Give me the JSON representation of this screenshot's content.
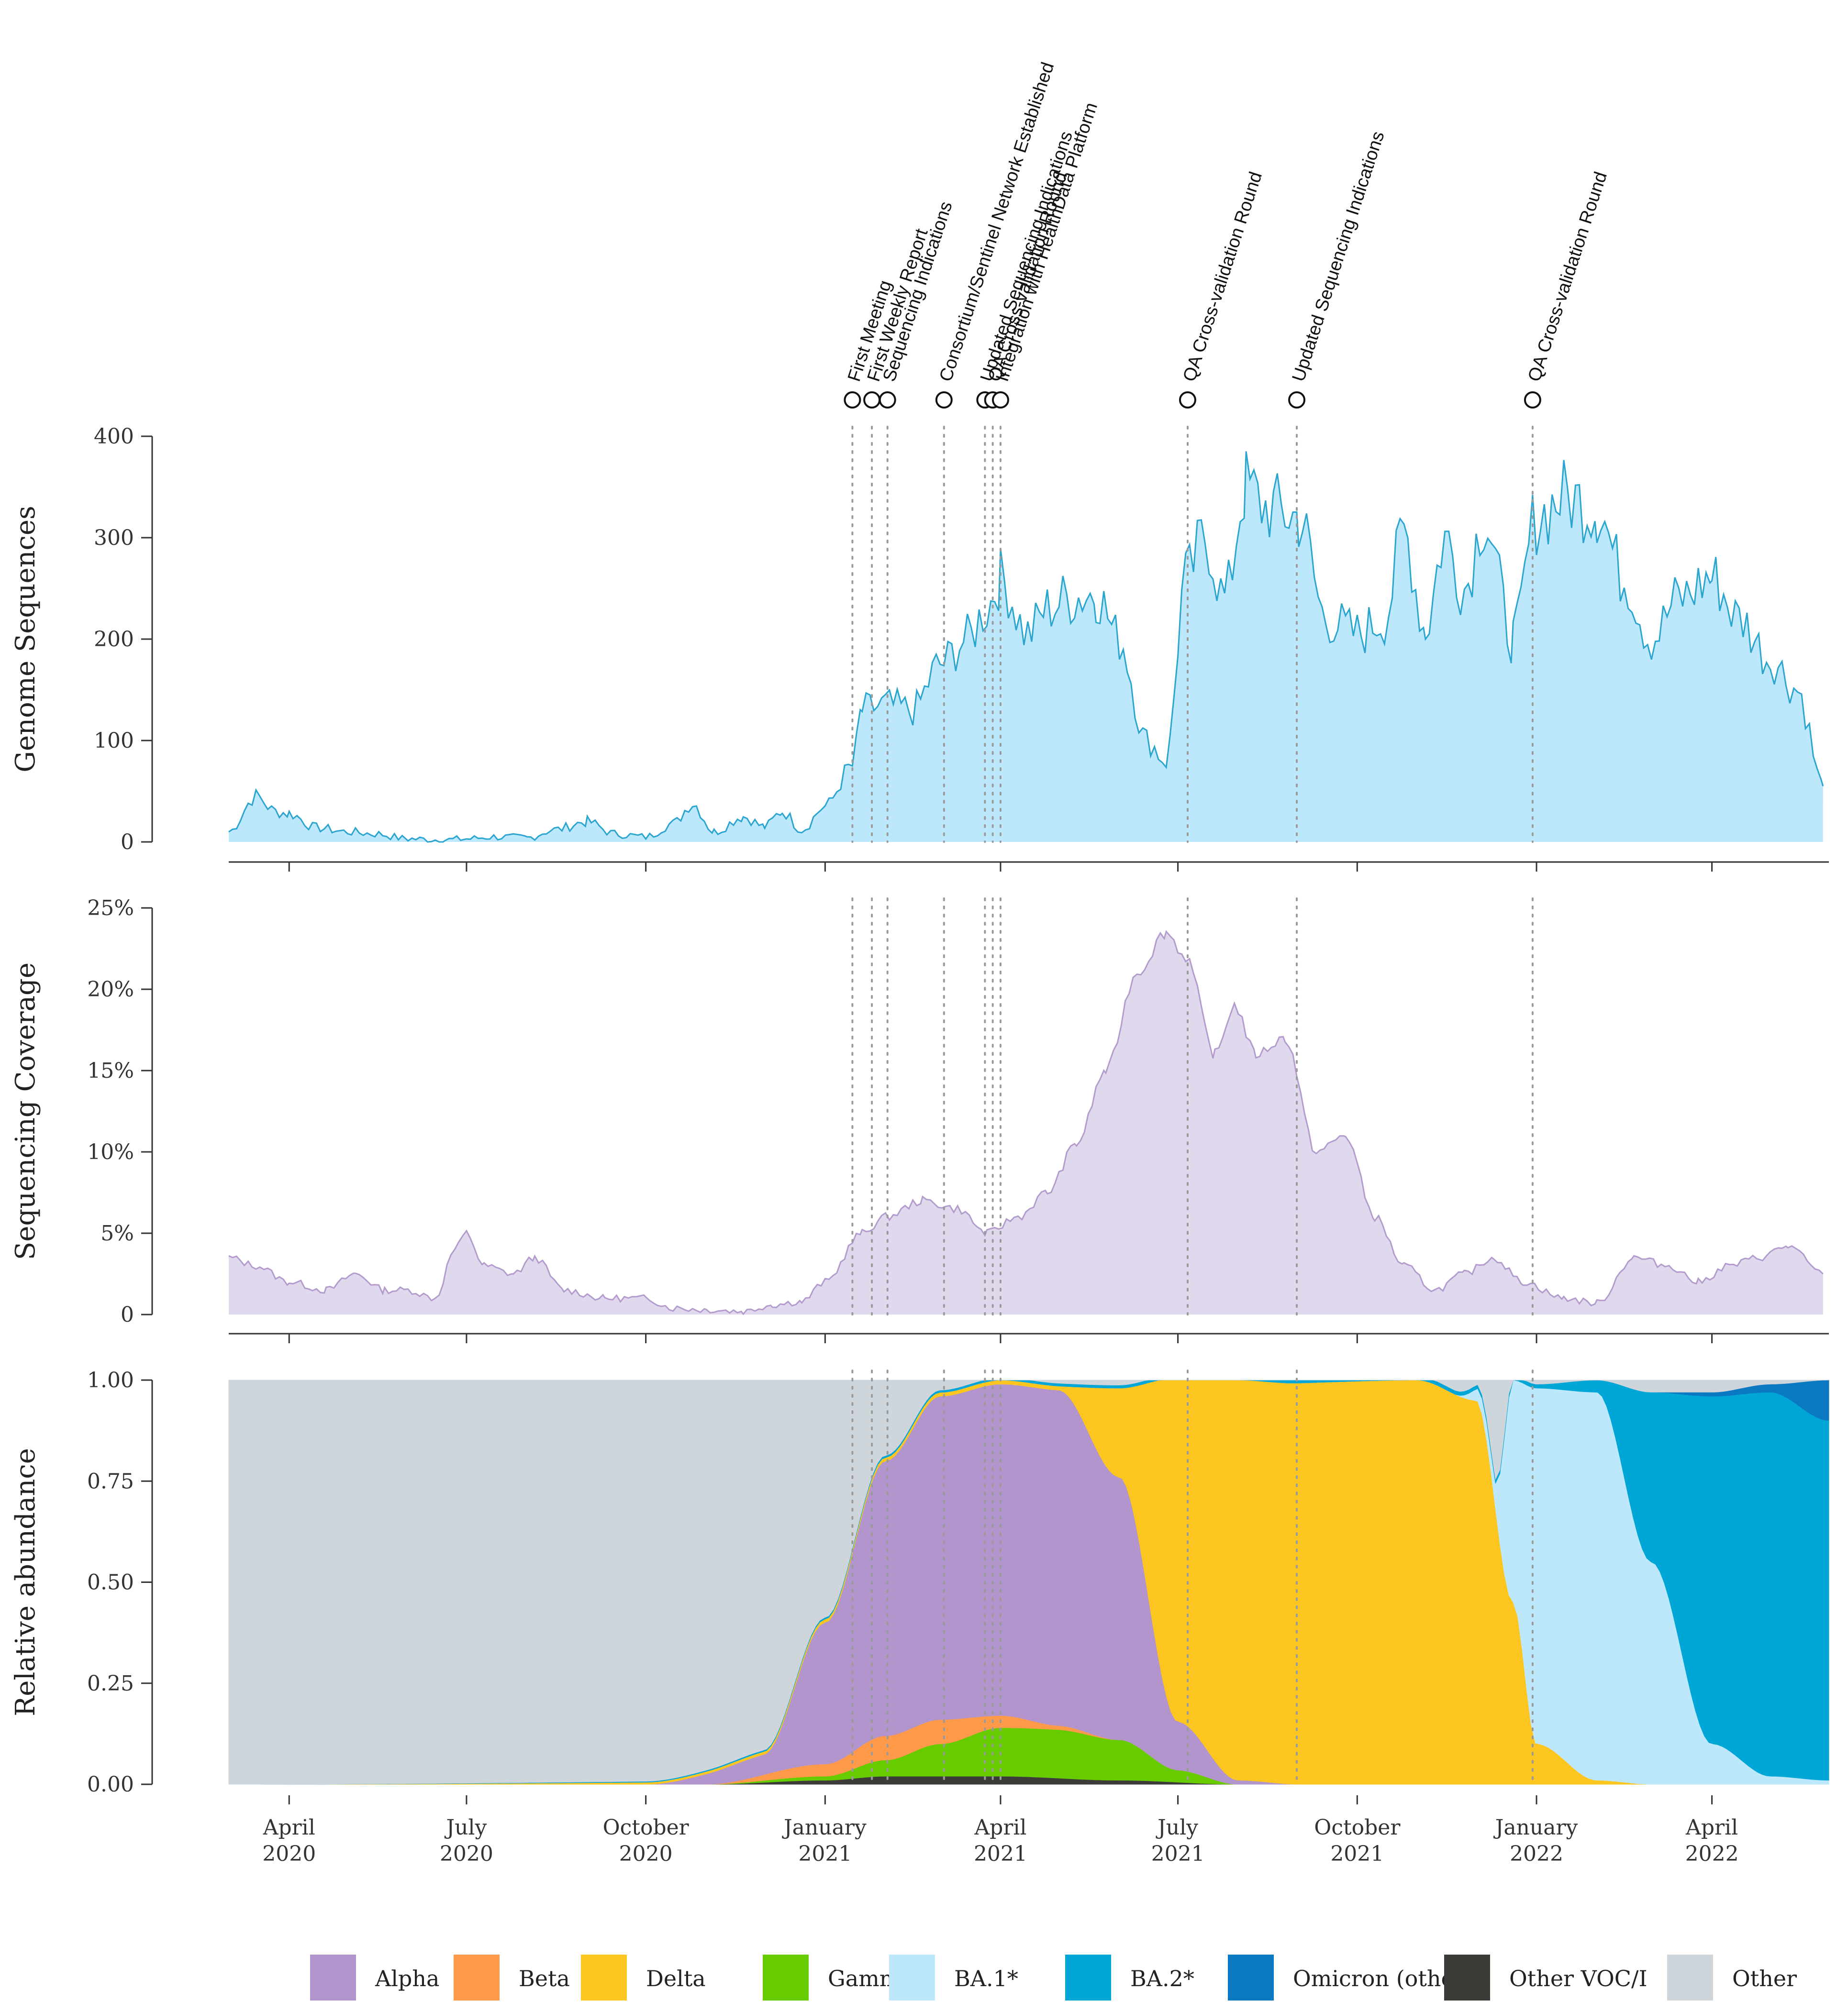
{
  "chart_data": {
    "type": "area",
    "x_axis": {
      "range": [
        "2020-03-01",
        "2022-05-31"
      ],
      "ticks": [
        {
          "date": "2020-04-01",
          "line1": "April",
          "line2": "2020"
        },
        {
          "date": "2020-07-01",
          "line1": "July",
          "line2": "2020"
        },
        {
          "date": "2020-10-01",
          "line1": "October",
          "line2": "2020"
        },
        {
          "date": "2021-01-01",
          "line1": "January",
          "line2": "2021"
        },
        {
          "date": "2021-04-01",
          "line1": "April",
          "line2": "2021"
        },
        {
          "date": "2021-07-01",
          "line1": "July",
          "line2": "2021"
        },
        {
          "date": "2021-10-01",
          "line1": "October",
          "line2": "2021"
        },
        {
          "date": "2022-01-01",
          "line1": "January",
          "line2": "2022"
        },
        {
          "date": "2022-04-01",
          "line1": "April",
          "line2": "2022"
        }
      ]
    },
    "events": [
      {
        "date": "2021-01-15",
        "label": "First Meeting"
      },
      {
        "date": "2021-01-25",
        "label": "First Weekly Report"
      },
      {
        "date": "2021-02-02",
        "label": "Sequencing Indications"
      },
      {
        "date": "2021-03-03",
        "label": "Consortium/Sentinel Network Established"
      },
      {
        "date": "2021-03-24",
        "label": "Updated Sequencing Indications"
      },
      {
        "date": "2021-03-28",
        "label": "QA Cross-validation Round"
      },
      {
        "date": "2021-04-01",
        "label": "Integration with HealthData Platform"
      },
      {
        "date": "2021-07-06",
        "label": "QA Cross-validation Round"
      },
      {
        "date": "2021-08-31",
        "label": "Updated Sequencing Indications"
      },
      {
        "date": "2021-12-30",
        "label": "QA Cross-validation Round"
      }
    ],
    "panels": [
      {
        "id": "genome_sequences",
        "type": "area",
        "ylabel": "Genome Sequences",
        "ylim": [
          0,
          400
        ],
        "yticks": [
          0,
          100,
          200,
          300,
          400
        ],
        "ytick_labels": [
          "0",
          "100",
          "200",
          "300",
          "400"
        ],
        "fill": "#bde8fb",
        "stroke": "#2aa5cf",
        "series": [
          [
            "2020-03-01",
            10
          ],
          [
            "2020-03-15",
            45
          ],
          [
            "2020-03-25",
            30
          ],
          [
            "2020-04-01",
            28
          ],
          [
            "2020-04-15",
            14
          ],
          [
            "2020-05-01",
            10
          ],
          [
            "2020-05-15",
            8
          ],
          [
            "2020-06-01",
            3
          ],
          [
            "2020-06-20",
            2
          ],
          [
            "2020-07-01",
            3
          ],
          [
            "2020-07-15",
            5
          ],
          [
            "2020-08-01",
            4
          ],
          [
            "2020-08-15",
            12
          ],
          [
            "2020-09-01",
            20
          ],
          [
            "2020-09-15",
            8
          ],
          [
            "2020-10-01",
            5
          ],
          [
            "2020-10-15",
            18
          ],
          [
            "2020-10-25",
            38
          ],
          [
            "2020-11-05",
            10
          ],
          [
            "2020-11-20",
            25
          ],
          [
            "2020-12-01",
            15
          ],
          [
            "2020-12-10",
            30
          ],
          [
            "2020-12-20",
            12
          ],
          [
            "2021-01-01",
            35
          ],
          [
            "2021-01-15",
            75
          ],
          [
            "2021-01-20",
            130
          ],
          [
            "2021-02-01",
            135
          ],
          [
            "2021-02-15",
            130
          ],
          [
            "2021-03-01",
            175
          ],
          [
            "2021-03-15",
            200
          ],
          [
            "2021-03-25",
            230
          ],
          [
            "2021-04-01",
            260
          ],
          [
            "2021-04-15",
            205
          ],
          [
            "2021-04-25",
            230
          ],
          [
            "2021-05-05",
            240
          ],
          [
            "2021-05-20",
            245
          ],
          [
            "2021-06-01",
            200
          ],
          [
            "2021-06-15",
            100
          ],
          [
            "2021-06-25",
            80
          ],
          [
            "2021-07-05",
            260
          ],
          [
            "2021-07-15",
            300
          ],
          [
            "2021-07-25",
            240
          ],
          [
            "2021-08-05",
            350
          ],
          [
            "2021-08-15",
            330
          ],
          [
            "2021-09-01",
            320
          ],
          [
            "2021-09-15",
            220
          ],
          [
            "2021-10-01",
            205
          ],
          [
            "2021-10-15",
            220
          ],
          [
            "2021-10-25",
            305
          ],
          [
            "2021-11-05",
            210
          ],
          [
            "2021-11-15",
            300
          ],
          [
            "2021-11-25",
            250
          ],
          [
            "2021-12-05",
            320
          ],
          [
            "2021-12-20",
            200
          ],
          [
            "2022-01-01",
            320
          ],
          [
            "2022-01-15",
            340
          ],
          [
            "2022-02-01",
            330
          ],
          [
            "2022-02-15",
            260
          ],
          [
            "2022-03-01",
            200
          ],
          [
            "2022-03-15",
            240
          ],
          [
            "2022-04-01",
            260
          ],
          [
            "2022-04-15",
            220
          ],
          [
            "2022-05-01",
            180
          ],
          [
            "2022-05-15",
            150
          ],
          [
            "2022-05-28",
            55
          ]
        ]
      },
      {
        "id": "sequencing_coverage",
        "type": "area",
        "ylabel": "Sequencing Coverage",
        "ylim": [
          0,
          25
        ],
        "yticks": [
          0,
          5,
          10,
          15,
          20,
          25
        ],
        "ytick_labels": [
          "0",
          "5%",
          "10%",
          "15%",
          "20%",
          "25%"
        ],
        "fill": "#e0d8ec",
        "stroke": "#b39ccd",
        "series": [
          [
            "2020-03-01",
            3.5
          ],
          [
            "2020-03-15",
            3.0
          ],
          [
            "2020-04-01",
            2.0
          ],
          [
            "2020-04-20",
            1.5
          ],
          [
            "2020-05-05",
            2.5
          ],
          [
            "2020-05-20",
            1.5
          ],
          [
            "2020-06-01",
            1.5
          ],
          [
            "2020-06-15",
            1.0
          ],
          [
            "2020-06-25",
            4.0
          ],
          [
            "2020-07-01",
            5.0
          ],
          [
            "2020-07-10",
            3.0
          ],
          [
            "2020-07-25",
            2.5
          ],
          [
            "2020-08-05",
            3.5
          ],
          [
            "2020-08-20",
            1.5
          ],
          [
            "2020-09-10",
            1.0
          ],
          [
            "2020-10-01",
            1.0
          ],
          [
            "2020-10-15",
            0.4
          ],
          [
            "2020-11-01",
            0.3
          ],
          [
            "2020-11-20",
            0.2
          ],
          [
            "2020-12-05",
            0.6
          ],
          [
            "2020-12-20",
            0.8
          ],
          [
            "2021-01-01",
            2.0
          ],
          [
            "2021-01-20",
            5.0
          ],
          [
            "2021-02-01",
            6.0
          ],
          [
            "2021-02-20",
            7.0
          ],
          [
            "2021-03-10",
            6.5
          ],
          [
            "2021-03-25",
            5.0
          ],
          [
            "2021-04-10",
            6.0
          ],
          [
            "2021-04-25",
            7.5
          ],
          [
            "2021-05-10",
            10.5
          ],
          [
            "2021-05-25",
            15.0
          ],
          [
            "2021-06-10",
            21.0
          ],
          [
            "2021-06-25",
            23.5
          ],
          [
            "2021-07-05",
            22.0
          ],
          [
            "2021-07-20",
            16.0
          ],
          [
            "2021-07-30",
            19.0
          ],
          [
            "2021-08-10",
            16.0
          ],
          [
            "2021-08-25",
            17.0
          ],
          [
            "2021-09-10",
            10.0
          ],
          [
            "2021-09-25",
            11.0
          ],
          [
            "2021-10-10",
            6.0
          ],
          [
            "2021-10-25",
            3.0
          ],
          [
            "2021-11-10",
            1.5
          ],
          [
            "2021-11-25",
            2.5
          ],
          [
            "2021-12-10",
            3.5
          ],
          [
            "2021-12-25",
            2.0
          ],
          [
            "2022-01-15",
            1.0
          ],
          [
            "2022-02-01",
            0.7
          ],
          [
            "2022-02-20",
            3.5
          ],
          [
            "2022-03-10",
            3.0
          ],
          [
            "2022-03-25",
            2.0
          ],
          [
            "2022-04-10",
            3.0
          ],
          [
            "2022-04-25",
            3.5
          ],
          [
            "2022-05-10",
            4.2
          ],
          [
            "2022-05-28",
            2.5
          ]
        ]
      },
      {
        "id": "relative_abundance",
        "type": "stacked-area",
        "ylabel": "Relative abundance",
        "ylim": [
          0,
          1
        ],
        "yticks": [
          0,
          0.25,
          0.5,
          0.75,
          1.0
        ],
        "ytick_labels": [
          "0.00",
          "0.25",
          "0.50",
          "0.75",
          "1.00"
        ],
        "series": [
          {
            "name": "Other VOC/I",
            "color": "#3c3b37",
            "points": [
              [
                "2020-03-01",
                0
              ],
              [
                "2020-11-01",
                0
              ],
              [
                "2021-01-01",
                0.01
              ],
              [
                "2021-02-01",
                0.02
              ],
              [
                "2021-03-01",
                0.02
              ],
              [
                "2021-04-01",
                0.02
              ],
              [
                "2021-06-01",
                0.01
              ],
              [
                "2021-08-01",
                0
              ],
              [
                "2022-05-31",
                0
              ]
            ]
          },
          {
            "name": "Gamma",
            "color": "#66cc00",
            "points": [
              [
                "2020-03-01",
                0
              ],
              [
                "2020-11-01",
                0
              ],
              [
                "2021-01-01",
                0.01
              ],
              [
                "2021-02-01",
                0.04
              ],
              [
                "2021-03-01",
                0.08
              ],
              [
                "2021-04-01",
                0.12
              ],
              [
                "2021-05-01",
                0.12
              ],
              [
                "2021-06-01",
                0.1
              ],
              [
                "2021-07-01",
                0.03
              ],
              [
                "2021-08-01",
                0
              ],
              [
                "2022-05-31",
                0
              ]
            ]
          },
          {
            "name": "Beta",
            "color": "#ff9a4a",
            "points": [
              [
                "2020-03-01",
                0
              ],
              [
                "2020-11-01",
                0
              ],
              [
                "2021-01-01",
                0.03
              ],
              [
                "2021-02-01",
                0.06
              ],
              [
                "2021-03-01",
                0.06
              ],
              [
                "2021-04-01",
                0.03
              ],
              [
                "2021-05-01",
                0.01
              ],
              [
                "2021-06-01",
                0
              ],
              [
                "2022-05-31",
                0
              ]
            ]
          },
          {
            "name": "Alpha",
            "color": "#b195cc",
            "points": [
              [
                "2020-03-01",
                0
              ],
              [
                "2020-10-01",
                0
              ],
              [
                "2020-12-01",
                0.05
              ],
              [
                "2021-01-01",
                0.35
              ],
              [
                "2021-02-01",
                0.68
              ],
              [
                "2021-03-01",
                0.8
              ],
              [
                "2021-04-01",
                0.82
              ],
              [
                "2021-05-01",
                0.83
              ],
              [
                "2021-06-01",
                0.65
              ],
              [
                "2021-07-01",
                0.12
              ],
              [
                "2021-08-01",
                0.01
              ],
              [
                "2021-09-01",
                0
              ],
              [
                "2022-05-31",
                0
              ]
            ]
          },
          {
            "name": "Delta",
            "color": "#fcc51f",
            "points": [
              [
                "2020-03-01",
                0
              ],
              [
                "2021-05-01",
                0.01
              ],
              [
                "2021-06-01",
                0.22
              ],
              [
                "2021-07-01",
                0.85
              ],
              [
                "2021-08-01",
                0.99
              ],
              [
                "2021-11-01",
                1.0
              ],
              [
                "2021-12-01",
                0.95
              ],
              [
                "2021-12-20",
                0.45
              ],
              [
                "2022-01-01",
                0.1
              ],
              [
                "2022-02-01",
                0.01
              ],
              [
                "2022-03-01",
                0
              ],
              [
                "2022-05-31",
                0
              ]
            ]
          },
          {
            "name": "BA.1*",
            "color": "#bde8fb",
            "points": [
              [
                "2020-03-01",
                0
              ],
              [
                "2021-11-20",
                0
              ],
              [
                "2021-12-10",
                0.05
              ],
              [
                "2021-12-20",
                0.55
              ],
              [
                "2022-01-01",
                0.88
              ],
              [
                "2022-02-01",
                0.96
              ],
              [
                "2022-03-01",
                0.55
              ],
              [
                "2022-04-01",
                0.1
              ],
              [
                "2022-05-01",
                0.02
              ],
              [
                "2022-05-31",
                0.01
              ]
            ]
          },
          {
            "name": "BA.2*",
            "color": "#00a6d6",
            "points": [
              [
                "2020-03-01",
                0
              ],
              [
                "2022-01-01",
                0.01
              ],
              [
                "2022-02-01",
                0.03
              ],
              [
                "2022-03-01",
                0.42
              ],
              [
                "2022-04-01",
                0.86
              ],
              [
                "2022-05-01",
                0.95
              ],
              [
                "2022-05-31",
                0.89
              ]
            ]
          },
          {
            "name": "Omicron (other)",
            "color": "#0b78c2",
            "points": [
              [
                "2020-03-01",
                0
              ],
              [
                "2022-03-01",
                0
              ],
              [
                "2022-04-01",
                0.01
              ],
              [
                "2022-05-01",
                0.02
              ],
              [
                "2022-05-31",
                0.1
              ]
            ]
          },
          {
            "name": "Other",
            "color": "#ced5db",
            "points": "remainder"
          }
        ]
      }
    ],
    "legend": [
      {
        "name": "Alpha",
        "color": "#b195cc"
      },
      {
        "name": "Beta",
        "color": "#ff9a4a"
      },
      {
        "name": "Delta",
        "color": "#fcc51f"
      },
      {
        "name": "Gamma",
        "color": "#66cc00"
      },
      {
        "name": "BA.1*",
        "color": "#bde8fb"
      },
      {
        "name": "BA.2*",
        "color": "#00a6d6"
      },
      {
        "name": "Omicron (other)",
        "color": "#0b78c2"
      },
      {
        "name": "Other VOC/I",
        "color": "#3c3b37"
      },
      {
        "name": "Other",
        "color": "#ced5db"
      }
    ]
  }
}
